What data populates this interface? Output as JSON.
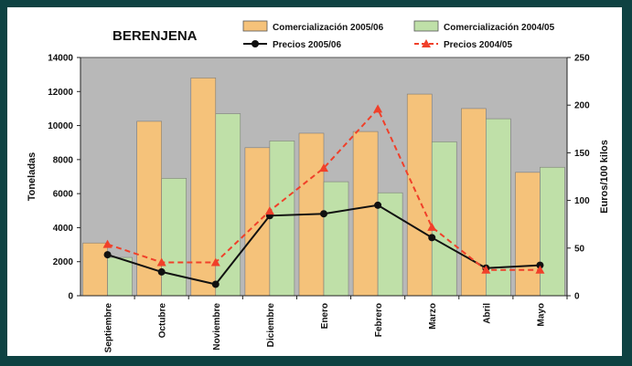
{
  "chart_data": {
    "type": "bar+line",
    "title": "BERENJENA",
    "categories": [
      "Septiembre",
      "Octubre",
      "Noviembre",
      "Diciembre",
      "Enero",
      "Febrero",
      "Marzo",
      "Abril",
      "Mayo"
    ],
    "bar_series": [
      {
        "name": "Comercialización 2005/06",
        "color": "#f5c27a",
        "values": [
          3100,
          10250,
          12800,
          8700,
          9550,
          9650,
          11850,
          11000,
          7250
        ]
      },
      {
        "name": "Comercialización 2004/05",
        "color": "#bfe0a8",
        "values": [
          2250,
          6900,
          10700,
          9100,
          6700,
          6050,
          9050,
          10400,
          7550
        ]
      }
    ],
    "line_series": [
      {
        "name": "Precios 2005/06",
        "color": "#111111",
        "style": "solid",
        "marker": "circle",
        "values": [
          43,
          25,
          12,
          84,
          86,
          95,
          61,
          29,
          32
        ]
      },
      {
        "name": "Precios 2004/05",
        "color": "#f0402a",
        "style": "dashed",
        "marker": "triangle",
        "values": [
          54,
          35,
          35,
          89,
          134,
          196,
          72,
          27,
          27
        ]
      }
    ],
    "yleft": {
      "label": "Toneladas",
      "min": 0,
      "max": 14000,
      "step": 2000
    },
    "yright": {
      "label": "Euros/100 kilos",
      "min": 0,
      "max": 250,
      "step": 50
    },
    "plot_background": "#b8b8b8",
    "legend_position": "top"
  }
}
